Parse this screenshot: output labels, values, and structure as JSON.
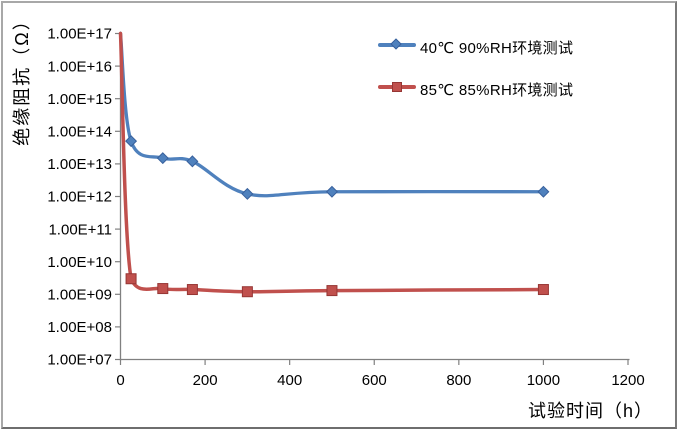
{
  "frame": {
    "background": "#ffffff",
    "border_color": "#a8a8a8"
  },
  "axis_style": {
    "line_color": "#808080",
    "tick_color": "#808080",
    "text_color": "#000000"
  },
  "chart_data": {
    "type": "line",
    "title": "",
    "xlabel": "试验时间（h）",
    "ylabel": "绝缘阻抗（Ω）",
    "grid": false,
    "smooth_lines": true,
    "legend_position": "inside-top-right",
    "x_axis": {
      "range": [
        0,
        1200
      ],
      "ticks": [
        0,
        200,
        400,
        600,
        800,
        1000,
        1200
      ]
    },
    "y_axis": {
      "scale": "log",
      "exponent_range": [
        7,
        17
      ],
      "tick_labels": [
        "1.00E+17",
        "1.00E+16",
        "1.00E+15",
        "1.00E+14",
        "1.00E+13",
        "1.00E+12",
        "1.00E+11",
        "1.00E+10",
        "1.00E+09",
        "1.00E+08",
        "1.00E+07"
      ]
    },
    "x": [
      0,
      25,
      100,
      170,
      300,
      500,
      1000
    ],
    "first_point_marker_hidden": true,
    "series": [
      {
        "name": "40℃ 90%RH环境测试",
        "color": "#4F81BD",
        "marker": "diamond",
        "marker_edge_color": "#38609C",
        "values": [
          1e+17,
          50000000000000.0,
          15000000000000.0,
          12000000000000.0,
          1200000000000.0,
          1400000000000.0,
          1400000000000.0
        ]
      },
      {
        "name": "85℃ 85%RH环境测试",
        "color": "#C0504D",
        "marker": "square",
        "marker_edge_color": "#963634",
        "values": [
          1e+17,
          3000000000.0,
          1500000000.0,
          1400000000.0,
          1200000000.0,
          1300000000.0,
          1400000000.0
        ]
      }
    ]
  }
}
